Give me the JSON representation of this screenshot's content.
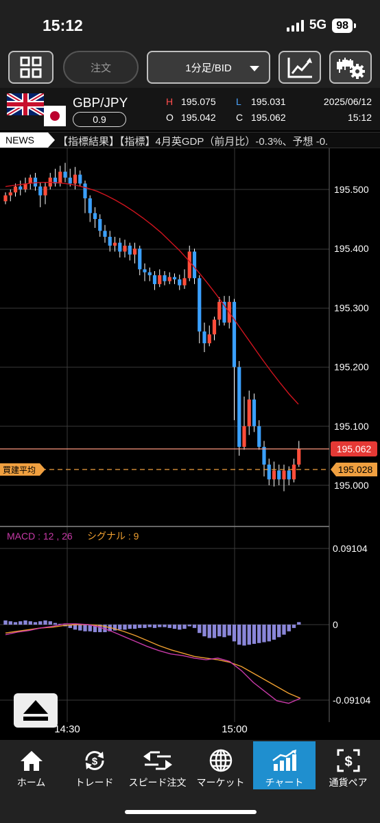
{
  "status_bar": {
    "time": "15:12",
    "network": "5G",
    "battery": "98"
  },
  "toolbar": {
    "order_label": "注文",
    "period_label": "1分足/BID"
  },
  "header": {
    "pair": "GBP/JPY",
    "spread": "0.9",
    "high_label": "H",
    "high": "195.075",
    "low_label": "L",
    "low": "195.031",
    "open_label": "O",
    "open": "195.042",
    "close_label": "C",
    "close": "195.062",
    "date": "2025/06/12",
    "time": "15:12"
  },
  "news": {
    "label": "NEWS",
    "text": "【指標結果】【指標】4月英GDP（前月比）-0.3%、予想 -0."
  },
  "chart": {
    "price_ticks": [
      "195.500",
      "195.400",
      "195.300",
      "195.200",
      "195.100",
      "195.000"
    ],
    "current_price": "195.062",
    "avg_label": "買建平均",
    "avg_price": "195.028",
    "macd_title": "MACD : 12 , 26",
    "signal_title": "シグナル : 9",
    "macd_ticks": [
      "0.09104",
      "0",
      "-0.09104"
    ],
    "time_labels": [
      "14:30",
      "15:00"
    ],
    "colors": {
      "up": "#ff4d3a",
      "down": "#3aa0ff",
      "ma": "#d0141e",
      "macd": "#c83aa8",
      "signal": "#f0a030",
      "hist": "#8a86d8",
      "price_badge": "#e53935",
      "avg_badge": "#f0a040"
    }
  },
  "nav": [
    {
      "label": "ホーム",
      "icon": "home-icon"
    },
    {
      "label": "トレード",
      "icon": "trade-icon"
    },
    {
      "label": "スピード注文",
      "icon": "speed-order-icon"
    },
    {
      "label": "マーケット",
      "icon": "globe-icon"
    },
    {
      "label": "チャート",
      "icon": "chart-icon",
      "active": true
    },
    {
      "label": "通貨ペア",
      "icon": "currency-pair-icon"
    }
  ]
}
